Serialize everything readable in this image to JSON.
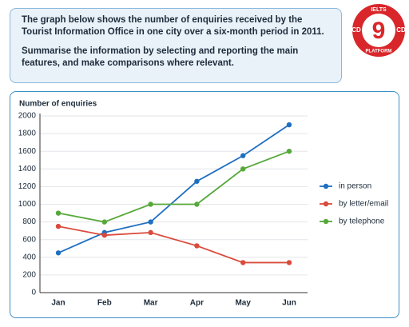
{
  "prompt": {
    "lines": [
      "The graph below shows the number of enquiries received by the Tourist Information Office in one city over a six-month period in 2011.",
      "Summarise the information by selecting and reporting the main features, and make comparisons where relevant."
    ]
  },
  "logo": {
    "top": "IELTS",
    "number": "9",
    "left": "CD",
    "right": "CD",
    "bottom": "PLATFORM"
  },
  "chart_data": {
    "type": "line",
    "y_label": "Number of enquiries",
    "categories": [
      "Jan",
      "Feb",
      "Mar",
      "Apr",
      "May",
      "Jun"
    ],
    "series": [
      {
        "name": "in person",
        "color": "#1f6fc1",
        "values": [
          450,
          680,
          800,
          1260,
          1550,
          1900
        ]
      },
      {
        "name": "by letter/email",
        "color": "#d94b3c",
        "values": [
          750,
          650,
          680,
          530,
          340,
          340
        ]
      },
      {
        "name": "by telephone",
        "color": "#56a83a",
        "values": [
          900,
          800,
          1000,
          1000,
          1400,
          1600
        ]
      }
    ],
    "ylim": [
      0,
      2000
    ],
    "yticks": [
      0,
      200,
      400,
      600,
      800,
      1000,
      1200,
      1400,
      1600,
      1800,
      2000
    ],
    "grid": true,
    "legend": "right"
  }
}
